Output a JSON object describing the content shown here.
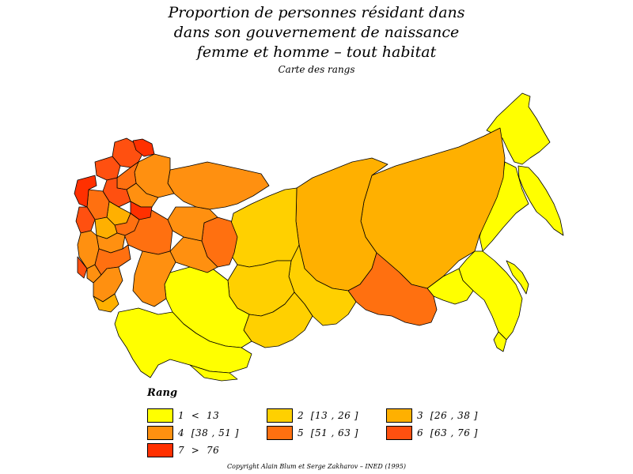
{
  "title": {
    "lines": [
      "Proportion de personnes résidant dans",
      "dans son gouvernement de naissance",
      "femme et homme – tout habitat"
    ],
    "subtitle": "Carte des rangs"
  },
  "legend": {
    "title": "Rang",
    "items": [
      {
        "label": "1  <  13",
        "color": "#ffff00"
      },
      {
        "label": "2  [13 , 26 ]",
        "color": "#ffd000"
      },
      {
        "label": "3  [26 , 38 ]",
        "color": "#ffb000"
      },
      {
        "label": "4  [38 , 51 ]",
        "color": "#ff9010"
      },
      {
        "label": "5  [51 , 63 ]",
        "color": "#ff7010"
      },
      {
        "label": "6  [63 , 76 ]",
        "color": "#ff5010"
      },
      {
        "label": "7  >  76",
        "color": "#ff3000"
      }
    ]
  },
  "copyright": "Copyright Alain Blum et Serge Zakharov – INED (1995)"
}
